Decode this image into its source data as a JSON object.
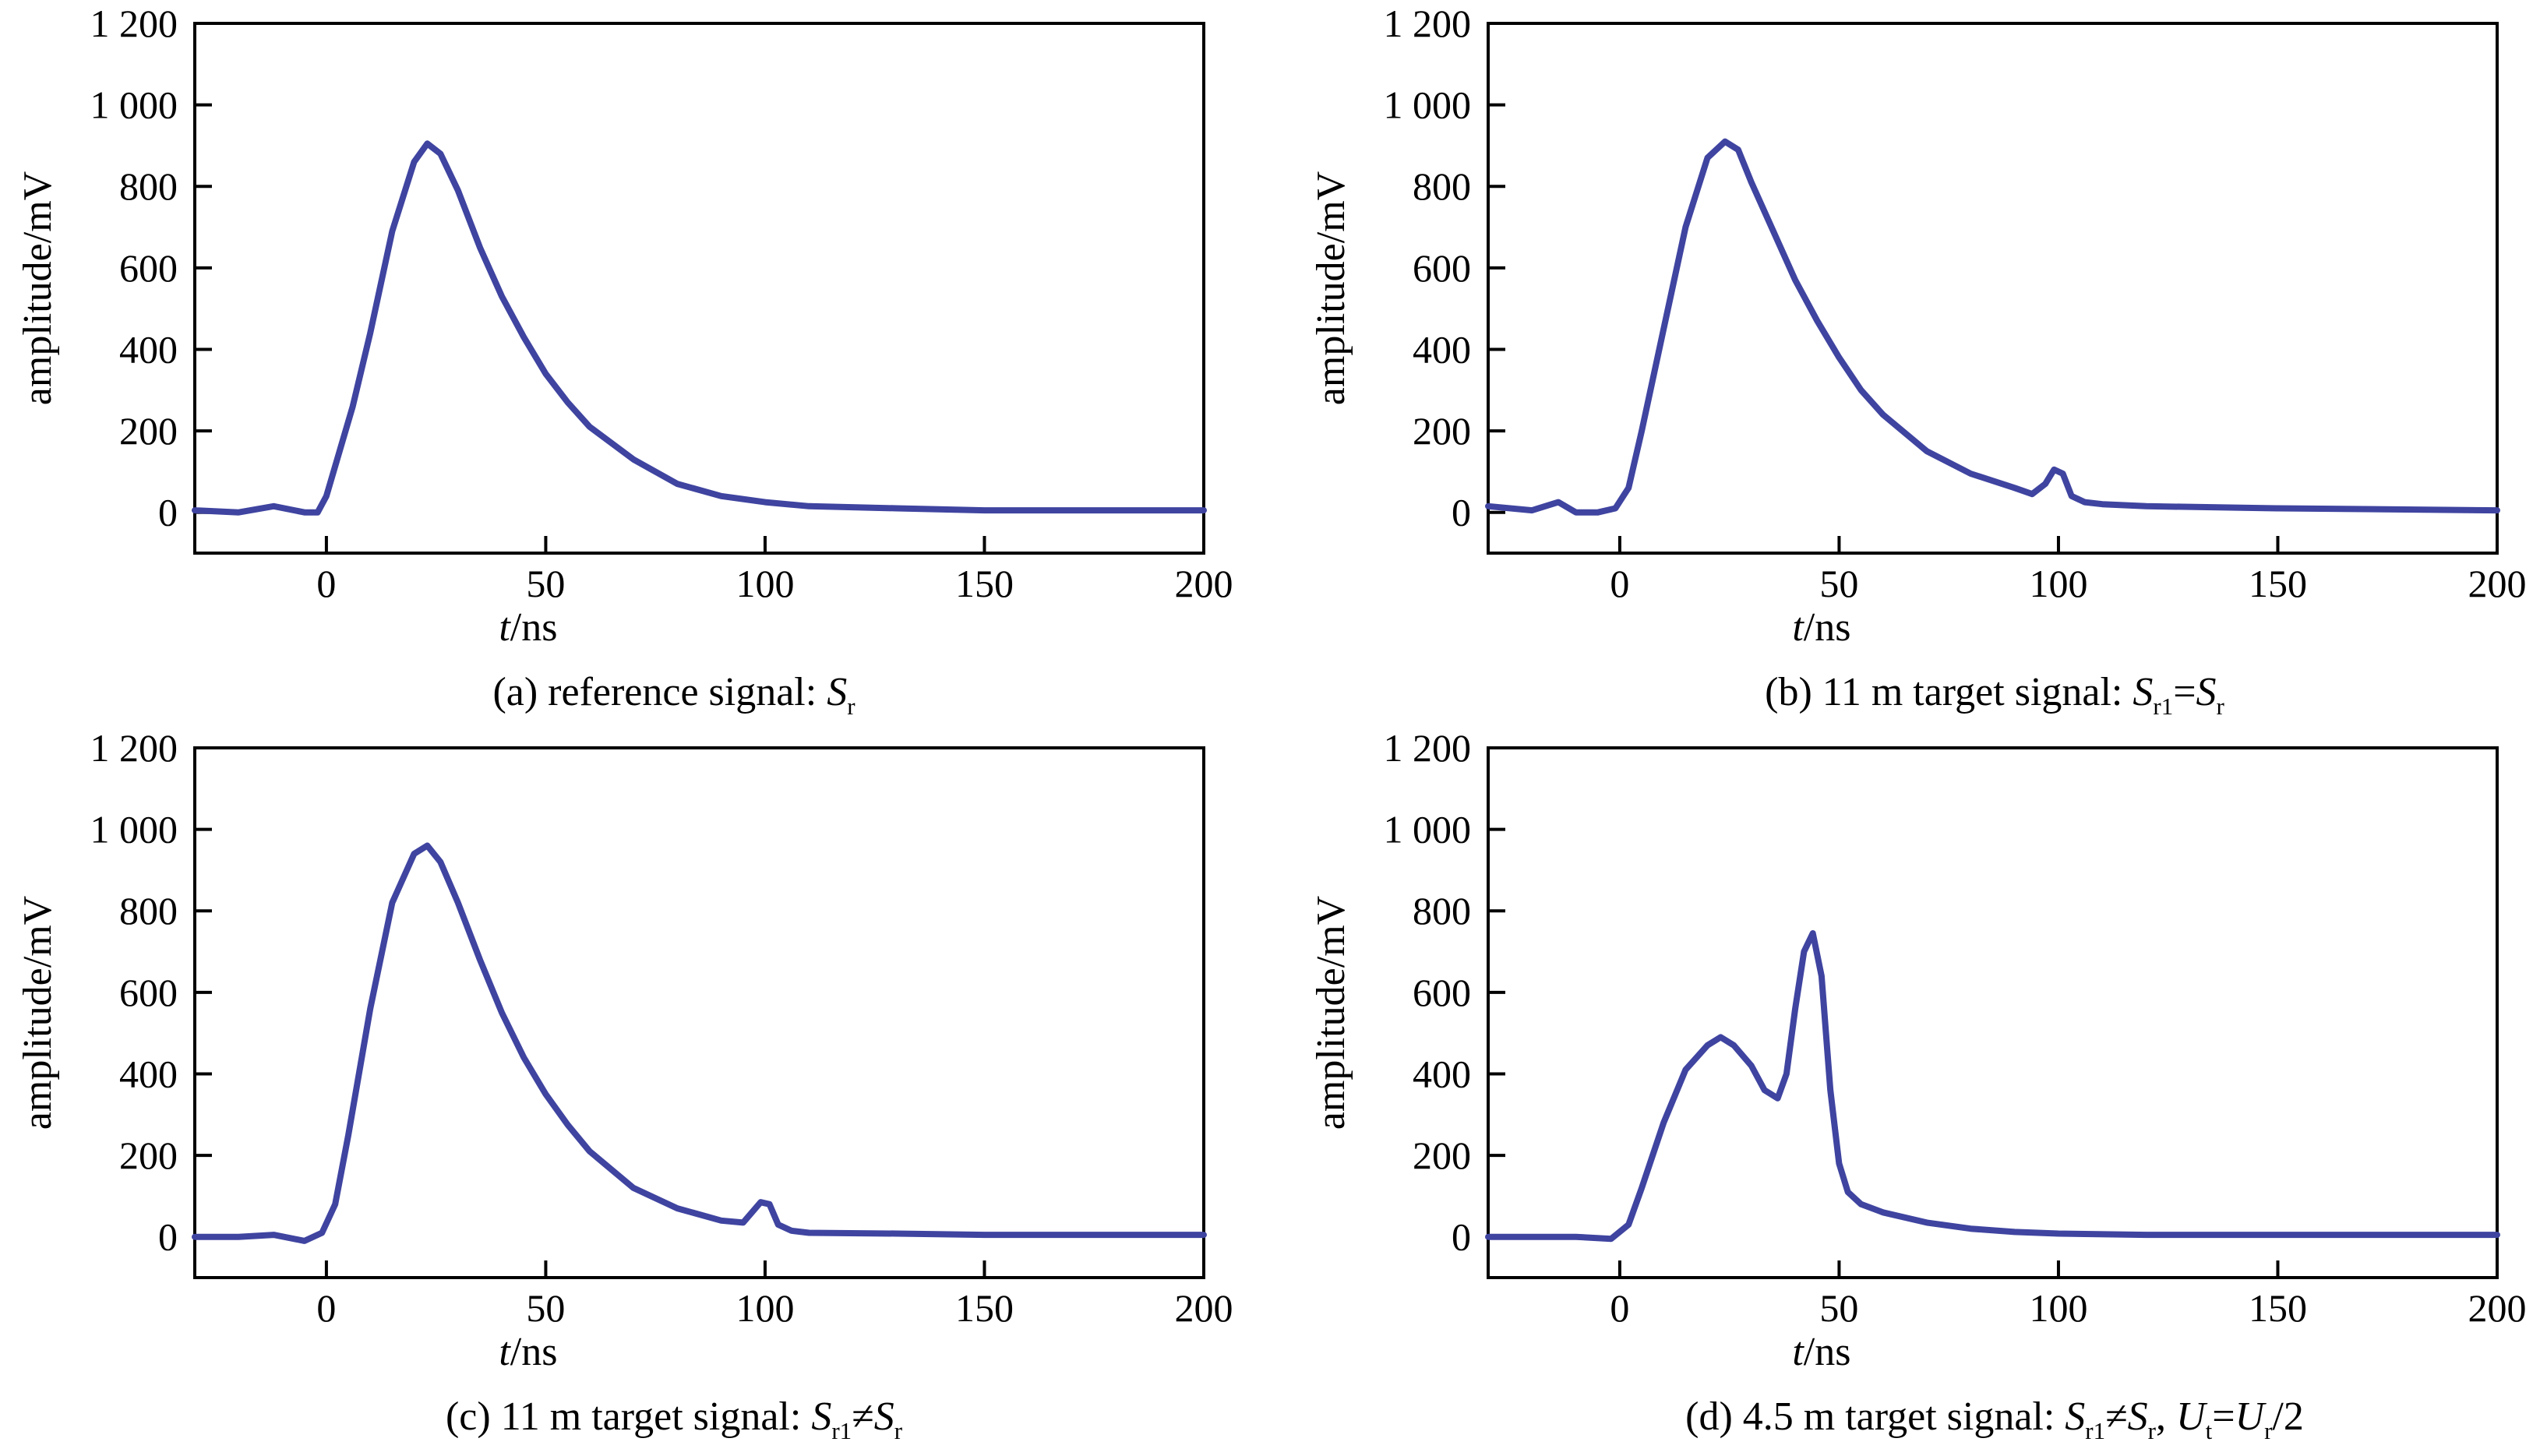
{
  "colors": {
    "line": "#3f44a0",
    "axis": "#000000"
  },
  "common": {
    "xlim": [
      -30,
      200
    ],
    "ylim": [
      -100,
      1200
    ],
    "xticks": [
      "0",
      "50",
      "100",
      "150",
      "200"
    ],
    "yticks": [
      "0",
      "200",
      "400",
      "600",
      "800",
      "1 000",
      "1 200"
    ]
  },
  "charts": [
    {
      "caption": {
        "lead": "(a) reference signal: ",
        "p1": "S",
        "p1sub": "r"
      },
      "xlabel": {
        "italic": "t",
        "rest": "/ns"
      },
      "ylabel": "amplitude/mV"
    },
    {
      "caption": {
        "lead": "(b) 11 m target signal: ",
        "p1": "S",
        "p1sub": "r1",
        "op1": "=",
        "p2": "S",
        "p2sub": "r"
      },
      "xlabel": {
        "italic": "t",
        "rest": "/ns"
      },
      "ylabel": "amplitude/mV"
    },
    {
      "caption": {
        "lead": "(c) 11 m target signal: ",
        "p1": "S",
        "p1sub": "r1",
        "op1": "≠",
        "p2": "S",
        "p2sub": "r"
      },
      "xlabel": {
        "italic": "t",
        "rest": "/ns"
      },
      "ylabel": "amplitude/mV"
    },
    {
      "caption": {
        "lead": "(d) 4.5 m target signal: ",
        "p1": "S",
        "p1sub": "r1",
        "op1": "≠",
        "p2": "S",
        "p2sub": "r",
        "sep": ", ",
        "p3": "U",
        "p3sub": "t",
        "op2": "=",
        "p4": "U",
        "p4sub": "r",
        "tail": "/2"
      },
      "xlabel": {
        "italic": "t",
        "rest": "/ns"
      },
      "ylabel": "amplitude/mV"
    }
  ],
  "chart_data": [
    {
      "type": "line",
      "xlim": [
        -30,
        200
      ],
      "ylim": [
        -100,
        1200
      ],
      "x": [
        -30,
        -20,
        -12,
        -5,
        -2,
        0,
        3,
        6,
        10,
        15,
        20,
        23,
        26,
        30,
        35,
        40,
        45,
        50,
        55,
        60,
        70,
        80,
        90,
        100,
        110,
        130,
        150,
        170,
        200
      ],
      "y": [
        5,
        0,
        15,
        0,
        0,
        40,
        150,
        260,
        440,
        690,
        860,
        905,
        880,
        790,
        650,
        530,
        430,
        340,
        270,
        210,
        130,
        70,
        40,
        25,
        15,
        10,
        5,
        5,
        5
      ]
    },
    {
      "type": "line",
      "xlim": [
        -30,
        200
      ],
      "ylim": [
        -100,
        1200
      ],
      "x": [
        -30,
        -20,
        -14,
        -10,
        -5,
        -1,
        2,
        5,
        10,
        15,
        20,
        24,
        27,
        30,
        35,
        40,
        45,
        50,
        55,
        60,
        70,
        80,
        90,
        94,
        97,
        99,
        101,
        103,
        106,
        110,
        120,
        150,
        200
      ],
      "y": [
        15,
        5,
        25,
        0,
        0,
        10,
        60,
        200,
        450,
        700,
        870,
        910,
        890,
        810,
        690,
        570,
        470,
        380,
        300,
        240,
        150,
        95,
        60,
        45,
        70,
        105,
        95,
        40,
        25,
        20,
        15,
        10,
        5
      ]
    },
    {
      "type": "line",
      "xlim": [
        -30,
        200
      ],
      "ylim": [
        -100,
        1200
      ],
      "x": [
        -30,
        -20,
        -12,
        -5,
        -1,
        2,
        5,
        10,
        15,
        20,
        23,
        26,
        30,
        35,
        40,
        45,
        50,
        55,
        60,
        70,
        80,
        90,
        95,
        97,
        99,
        101,
        103,
        106,
        110,
        130,
        150,
        200
      ],
      "y": [
        0,
        0,
        5,
        -10,
        10,
        80,
        250,
        560,
        820,
        940,
        960,
        920,
        820,
        680,
        550,
        440,
        350,
        275,
        210,
        120,
        70,
        40,
        35,
        60,
        85,
        80,
        30,
        15,
        10,
        8,
        5,
        5
      ]
    },
    {
      "type": "line",
      "xlim": [
        -30,
        200
      ],
      "ylim": [
        -100,
        1200
      ],
      "x": [
        -30,
        -10,
        -2,
        2,
        5,
        10,
        15,
        20,
        23,
        26,
        30,
        33,
        36,
        38,
        40,
        42,
        44,
        46,
        48,
        50,
        52,
        55,
        60,
        70,
        80,
        90,
        100,
        120,
        150,
        200
      ],
      "y": [
        0,
        0,
        -5,
        30,
        120,
        280,
        410,
        470,
        490,
        470,
        420,
        360,
        340,
        400,
        560,
        700,
        745,
        640,
        360,
        180,
        110,
        80,
        60,
        35,
        20,
        12,
        8,
        5,
        5,
        5
      ]
    }
  ]
}
